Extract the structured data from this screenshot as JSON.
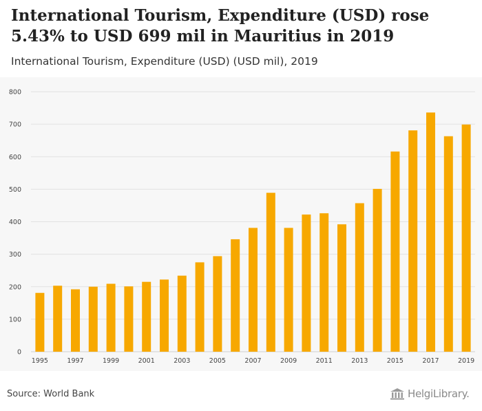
{
  "header": {
    "title": "International Tourism, Expenditure (USD) rose 5.43% to USD 699 mil in Mauritius in 2019",
    "subtitle": "International Tourism, Expenditure (USD) (USD mil), 2019"
  },
  "footer": {
    "source": "Source: World Bank",
    "logo_text": "HelgiLibrary."
  },
  "colors": {
    "bar": "#f7a800",
    "grid": "#e2e2e2",
    "axis_text": "#444444",
    "chart_bg": "#f7f7f7"
  },
  "chart_data": {
    "type": "bar",
    "title": "International Tourism, Expenditure (USD) rose 5.43% to USD 699 mil in Mauritius in 2019",
    "xlabel": "",
    "ylabel": "",
    "ylim": [
      0,
      800
    ],
    "yticks": [
      0,
      100,
      200,
      300,
      400,
      500,
      600,
      700,
      800
    ],
    "grid": true,
    "categories": [
      "1995",
      "1996",
      "1997",
      "1998",
      "1999",
      "2000",
      "2001",
      "2002",
      "2003",
      "2004",
      "2005",
      "2006",
      "2007",
      "2008",
      "2009",
      "2010",
      "2011",
      "2012",
      "2013",
      "2014",
      "2015",
      "2016",
      "2017",
      "2018",
      "2019"
    ],
    "tick_labels": [
      "1995",
      "",
      "1997",
      "",
      "1999",
      "",
      "2001",
      "",
      "2003",
      "",
      "2005",
      "",
      "2007",
      "",
      "2009",
      "",
      "2011",
      "",
      "2013",
      "",
      "2015",
      "",
      "2017",
      "",
      "2019"
    ],
    "values": [
      181,
      203,
      192,
      200,
      209,
      201,
      215,
      222,
      234,
      275,
      294,
      346,
      381,
      489,
      381,
      422,
      426,
      392,
      457,
      501,
      616,
      681,
      736,
      663,
      699
    ]
  }
}
